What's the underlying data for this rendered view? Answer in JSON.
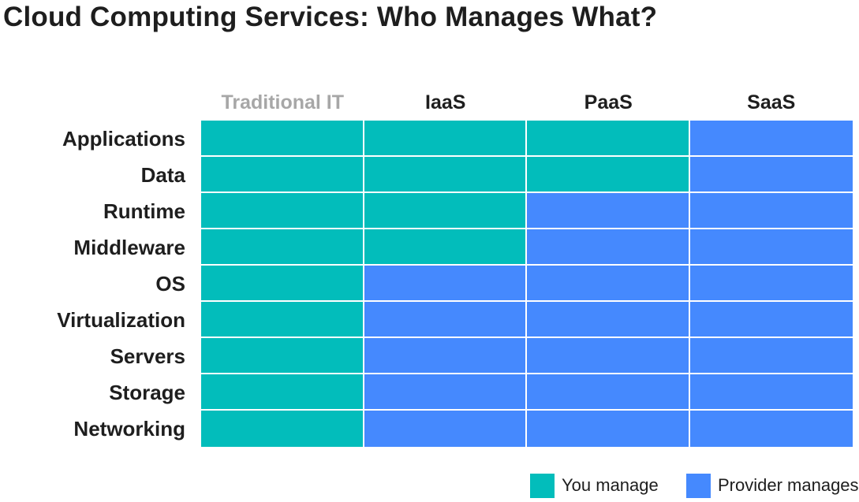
{
  "title": "Cloud Computing Services: Who Manages What?",
  "colors": {
    "you": "#02bdbb",
    "provider": "#4589fe",
    "header_muted": "#a7a7a7",
    "text": "#1e1e1e"
  },
  "columns": [
    {
      "label": "Traditional IT",
      "muted": true
    },
    {
      "label": "IaaS",
      "muted": false
    },
    {
      "label": "PaaS",
      "muted": false
    },
    {
      "label": "SaaS",
      "muted": false
    }
  ],
  "rows": [
    {
      "label": "Applications",
      "managed_by": [
        "you",
        "you",
        "you",
        "provider"
      ]
    },
    {
      "label": "Data",
      "managed_by": [
        "you",
        "you",
        "you",
        "provider"
      ]
    },
    {
      "label": "Runtime",
      "managed_by": [
        "you",
        "you",
        "provider",
        "provider"
      ]
    },
    {
      "label": "Middleware",
      "managed_by": [
        "you",
        "you",
        "provider",
        "provider"
      ]
    },
    {
      "label": "OS",
      "managed_by": [
        "you",
        "provider",
        "provider",
        "provider"
      ]
    },
    {
      "label": "Virtualization",
      "managed_by": [
        "you",
        "provider",
        "provider",
        "provider"
      ]
    },
    {
      "label": "Servers",
      "managed_by": [
        "you",
        "provider",
        "provider",
        "provider"
      ]
    },
    {
      "label": "Storage",
      "managed_by": [
        "you",
        "provider",
        "provider",
        "provider"
      ]
    },
    {
      "label": "Networking",
      "managed_by": [
        "you",
        "provider",
        "provider",
        "provider"
      ]
    }
  ],
  "legend": {
    "you_label": "You manage",
    "provider_label": "Provider manages"
  }
}
